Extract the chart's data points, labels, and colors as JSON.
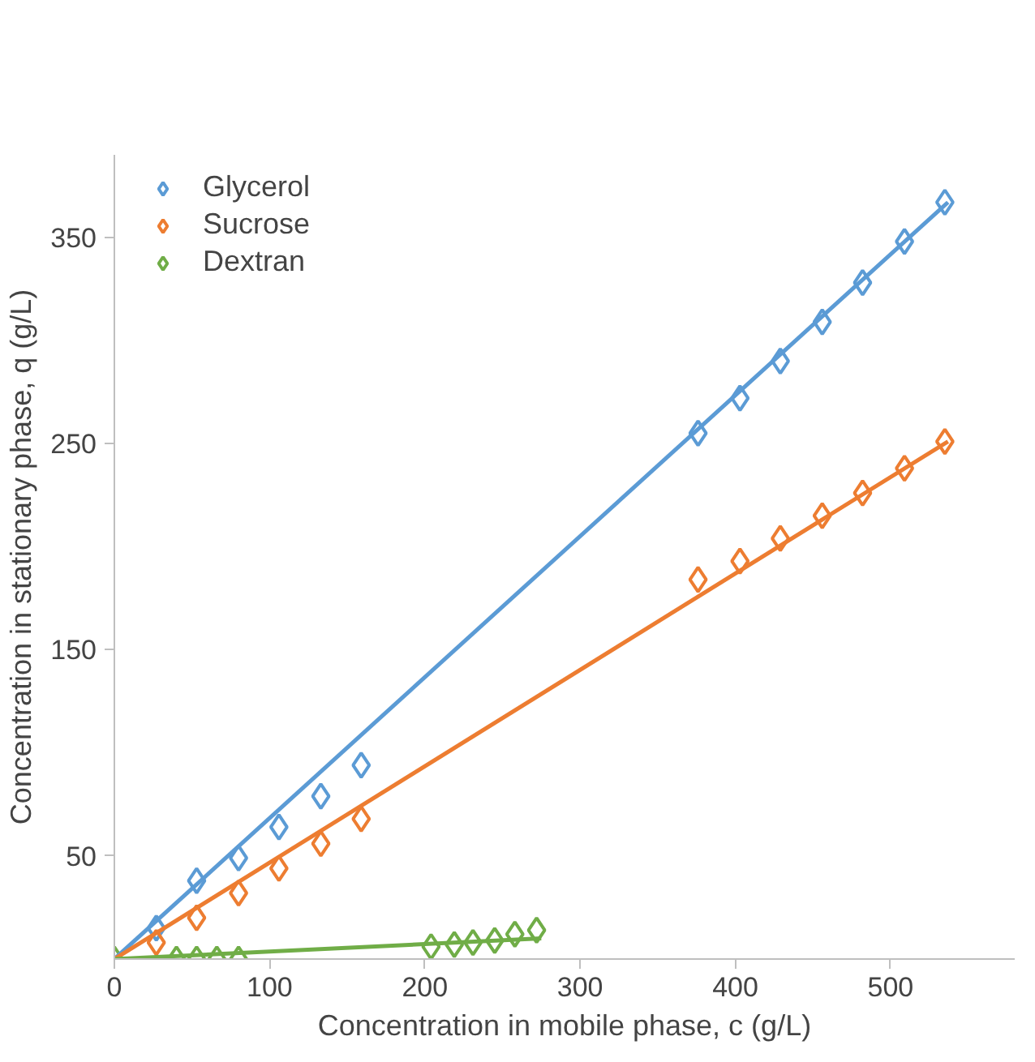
{
  "chart_data": {
    "type": "scatter",
    "xlabel": "Concentration in mobile phase, c (g/L)",
    "ylabel": "Concentration in stationary phase, q (g/L)",
    "xlim": [
      0,
      580
    ],
    "ylim": [
      0,
      390
    ],
    "xticks": [
      0,
      100,
      200,
      300,
      400,
      500
    ],
    "yticks": [
      50,
      150,
      250,
      350
    ],
    "grid": false,
    "legend": "top left",
    "marker": "diamond",
    "series": [
      {
        "name": "Glycerol",
        "color": "#5b9bd5",
        "x": [
          27,
          53,
          80,
          106,
          133,
          159,
          376,
          403,
          429,
          456,
          482,
          509,
          535
        ],
        "values": [
          15,
          38,
          49,
          64,
          79,
          94,
          255,
          272,
          290,
          309,
          328,
          348,
          367
        ]
      },
      {
        "name": "Sucrose",
        "color": "#ed7d31",
        "x": [
          27,
          53,
          80,
          106,
          133,
          159,
          376,
          403,
          429,
          456,
          482,
          509,
          535
        ],
        "values": [
          8,
          20,
          32,
          44,
          56,
          68,
          184,
          193,
          204,
          215,
          226,
          238,
          251
        ]
      },
      {
        "name": "Dextran",
        "color": "#70ad47",
        "x": [
          0,
          40,
          53,
          66,
          80,
          204,
          219,
          231,
          245,
          258,
          272
        ],
        "values": [
          0,
          0,
          0,
          0,
          0,
          6,
          7,
          8,
          9,
          12,
          14
        ]
      },
      {
        "type": "line",
        "marker": "none",
        "color": "#5b9bd5",
        "x": [
          0,
          537
        ],
        "values": [
          0,
          367
        ]
      },
      {
        "type": "line",
        "marker": "none",
        "color": "#ed7d31",
        "x": [
          0,
          537
        ],
        "values": [
          0,
          251
        ]
      },
      {
        "type": "line",
        "marker": "none",
        "color": "#70ad47",
        "x": [
          0,
          275
        ],
        "values": [
          0,
          10
        ]
      }
    ]
  }
}
